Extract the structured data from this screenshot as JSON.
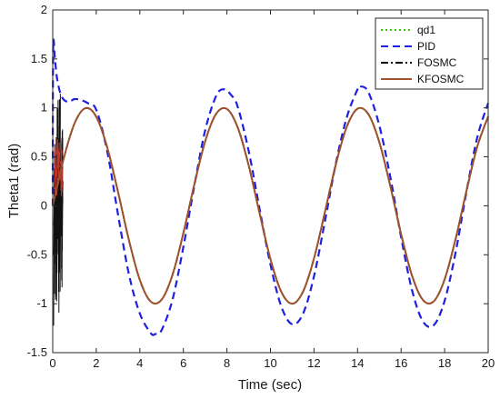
{
  "chart_data": {
    "type": "line",
    "title": "",
    "xlabel": "Time (sec)",
    "ylabel": "Theta1 (rad)",
    "xlim": [
      0,
      20
    ],
    "ylim": [
      -1.5,
      2
    ],
    "xticks": [
      0,
      2,
      4,
      6,
      8,
      10,
      12,
      14,
      16,
      18,
      20
    ],
    "yticks": [
      -1.5,
      -1,
      -0.5,
      0,
      0.5,
      1,
      1.5,
      2
    ],
    "xtick_labels": [
      "0",
      "2",
      "4",
      "6",
      "8",
      "10",
      "12",
      "14",
      "16",
      "18",
      "20"
    ],
    "ytick_labels": [
      "-1.5",
      "-1",
      "-0.5",
      "0",
      "0.5",
      "1",
      "1.5",
      "2"
    ],
    "grid": false,
    "legend_position": "top-right",
    "series": [
      {
        "name": "qd1",
        "color": "#33cc00",
        "style": "dotted",
        "x": [
          0,
          0.5,
          1,
          1.5,
          2,
          2.5,
          3,
          3.5,
          4,
          4.5,
          5,
          5.5,
          6,
          6.5,
          7,
          7.5,
          8,
          8.5,
          9,
          9.5,
          10,
          10.5,
          11,
          11.5,
          12,
          12.5,
          13,
          13.5,
          14,
          14.5,
          15,
          15.5,
          16,
          16.5,
          17,
          17.5,
          18,
          18.5,
          19,
          19.5,
          20
        ],
        "y": [
          0.0,
          0.479,
          0.841,
          0.997,
          0.909,
          0.598,
          0.141,
          -0.351,
          -0.757,
          -0.978,
          -0.959,
          -0.706,
          -0.279,
          0.215,
          0.657,
          0.938,
          0.989,
          0.798,
          0.412,
          -0.075,
          -0.544,
          -0.88,
          -1.0,
          -0.875,
          -0.537,
          -0.066,
          0.42,
          0.804,
          0.991,
          0.935,
          0.65,
          0.206,
          -0.288,
          -0.712,
          -0.961,
          -0.976,
          -0.751,
          -0.342,
          0.15,
          0.605,
          0.913
        ]
      },
      {
        "name": "PID",
        "color": "#1f1fe0",
        "style": "dashed",
        "x": [
          0,
          0.02,
          0.1,
          0.2,
          0.4,
          0.7,
          1.0,
          1.3,
          1.6,
          2.0,
          2.5,
          3.0,
          3.5,
          4.0,
          4.5,
          4.71,
          5.0,
          5.5,
          6.0,
          6.5,
          7.0,
          7.5,
          7.85,
          8.2,
          8.5,
          9.0,
          9.5,
          10.0,
          10.5,
          11.0,
          11.5,
          12.0,
          12.5,
          13.0,
          13.5,
          14.0,
          14.14,
          14.5,
          15.0,
          15.5,
          16.0,
          16.5,
          17.0,
          17.5,
          18.0,
          18.5,
          19.0,
          19.5,
          20.0
        ],
        "y": [
          0.0,
          1.6,
          1.5,
          1.3,
          1.12,
          1.06,
          1.09,
          1.08,
          1.05,
          0.98,
          0.56,
          -0.09,
          -0.7,
          -1.1,
          -1.3,
          -1.31,
          -1.27,
          -0.96,
          -0.42,
          0.2,
          0.77,
          1.12,
          1.19,
          1.13,
          1.01,
          0.56,
          -0.03,
          -0.6,
          -1.03,
          -1.21,
          -1.1,
          -0.72,
          -0.16,
          0.43,
          0.9,
          1.19,
          1.22,
          1.16,
          0.82,
          0.3,
          -0.32,
          -0.86,
          -1.18,
          -1.22,
          -0.97,
          -0.48,
          0.14,
          0.7,
          1.05
        ]
      },
      {
        "name": "FOSMC",
        "color": "#000000",
        "style": "dashdot",
        "x": [
          0,
          0.5,
          1,
          1.5,
          2,
          2.5,
          3,
          3.5,
          4,
          4.5,
          5,
          5.5,
          6,
          6.5,
          7,
          7.5,
          8,
          8.5,
          9,
          9.5,
          10,
          10.5,
          11,
          11.5,
          12,
          12.5,
          13,
          13.5,
          14,
          14.5,
          15,
          15.5,
          16,
          16.5,
          17,
          17.5,
          18,
          18.5,
          19,
          19.5,
          20
        ],
        "y": [
          0.0,
          0.479,
          0.841,
          0.997,
          0.909,
          0.598,
          0.141,
          -0.351,
          -0.757,
          -0.978,
          -0.959,
          -0.706,
          -0.279,
          0.215,
          0.657,
          0.938,
          0.989,
          0.798,
          0.412,
          -0.075,
          -0.544,
          -0.88,
          -1.0,
          -0.875,
          -0.537,
          -0.066,
          0.42,
          0.804,
          0.991,
          0.935,
          0.65,
          0.206,
          -0.288,
          -0.712,
          -0.961,
          -0.976,
          -0.751,
          -0.342,
          0.15,
          0.605,
          0.913
        ]
      },
      {
        "name": "KFOSMC",
        "color": "#a0522d",
        "style": "solid",
        "x": [
          0,
          0.5,
          1,
          1.5,
          2,
          2.5,
          3,
          3.5,
          4,
          4.5,
          5,
          5.5,
          6,
          6.5,
          7,
          7.5,
          8,
          8.5,
          9,
          9.5,
          10,
          10.5,
          11,
          11.5,
          12,
          12.5,
          13,
          13.5,
          14,
          14.5,
          15,
          15.5,
          16,
          16.5,
          17,
          17.5,
          18,
          18.5,
          19,
          19.5,
          20
        ],
        "y": [
          0.0,
          0.479,
          0.841,
          0.997,
          0.909,
          0.598,
          0.141,
          -0.351,
          -0.757,
          -0.978,
          -0.959,
          -0.706,
          -0.279,
          0.215,
          0.657,
          0.938,
          0.989,
          0.798,
          0.412,
          -0.075,
          -0.544,
          -0.88,
          -1.0,
          -0.875,
          -0.537,
          -0.066,
          0.42,
          0.804,
          0.991,
          0.935,
          0.65,
          0.206,
          -0.288,
          -0.712,
          -0.961,
          -0.976,
          -0.751,
          -0.342,
          0.15,
          0.605,
          0.913
        ]
      }
    ]
  }
}
